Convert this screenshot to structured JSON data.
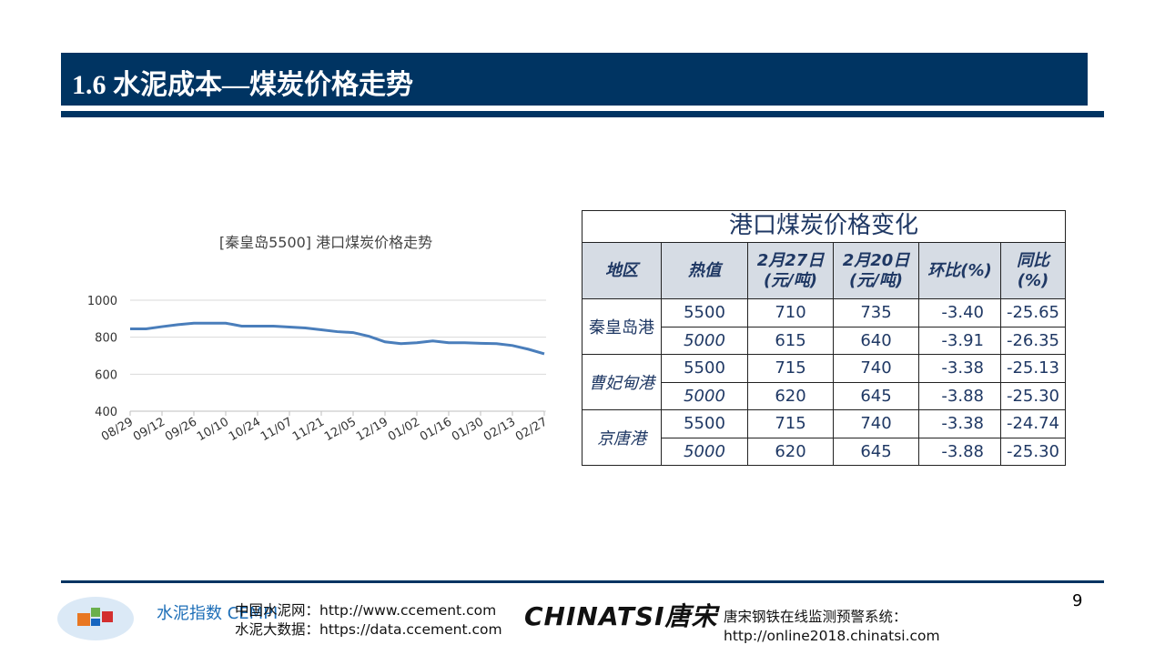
{
  "header": {
    "title": "1.6 水泥成本—煤炭价格走势"
  },
  "chart_data": {
    "type": "line",
    "title": "[秦皇岛5500] 港口煤炭价格走势",
    "xlabel": "",
    "ylabel": "",
    "ylim": [
      400,
      1000
    ],
    "yticks": [
      400,
      600,
      800,
      1000
    ],
    "xtick_labels": [
      "08/29",
      "09/12",
      "09/26",
      "10/10",
      "10/24",
      "11/07",
      "11/21",
      "12/05",
      "12/19",
      "01/02",
      "01/16",
      "01/30",
      "02/13",
      "02/27"
    ],
    "grid": true,
    "color": "#4a7ebb",
    "x": [
      "08/29",
      "09/05",
      "09/12",
      "09/19",
      "09/26",
      "10/03",
      "10/10",
      "10/17",
      "10/24",
      "10/31",
      "11/07",
      "11/14",
      "11/21",
      "11/28",
      "12/05",
      "12/12",
      "12/19",
      "12/26",
      "01/02",
      "01/09",
      "01/16",
      "01/23",
      "01/30",
      "02/06",
      "02/13",
      "02/20",
      "02/27"
    ],
    "values": [
      845,
      845,
      857,
      868,
      876,
      876,
      876,
      860,
      860,
      860,
      855,
      850,
      840,
      830,
      825,
      805,
      775,
      765,
      770,
      780,
      770,
      770,
      767,
      765,
      755,
      735,
      710
    ]
  },
  "table": {
    "title": "港口煤炭价格变化",
    "headers": [
      "地区",
      "热值",
      "2月27日\n(元/吨)",
      "2月20日\n(元/吨)",
      "环比(%)",
      "同比(%)"
    ],
    "h": {
      "c0": "地区",
      "c1": "热值",
      "c2a": "2月27日",
      "c2b": "(元/吨)",
      "c3a": "2月20日",
      "c3b": "(元/吨)",
      "c4": "环比(%)",
      "c5": "同比(%)"
    },
    "groups": [
      {
        "region": "秦皇岛港",
        "rows": [
          [
            "5500",
            "710",
            "735",
            "-3.40",
            "-25.65"
          ],
          [
            "5000",
            "615",
            "640",
            "-3.91",
            "-26.35"
          ]
        ]
      },
      {
        "region": "曹妃甸港",
        "rows": [
          [
            "5500",
            "715",
            "740",
            "-3.38",
            "-25.13"
          ],
          [
            "5000",
            "620",
            "645",
            "-3.88",
            "-25.30"
          ]
        ]
      },
      {
        "region": "京唐港",
        "rows": [
          [
            "5500",
            "715",
            "740",
            "-3.38",
            "-24.74"
          ],
          [
            "5000",
            "620",
            "645",
            "-3.88",
            "-25.30"
          ]
        ]
      }
    ]
  },
  "footer": {
    "ccement_label": "中国水泥网：http://www.ccement.com",
    "data_label": "水泥大数据：https://data.ccement.com",
    "cempi_logo": "水泥指数 CEMPI",
    "chinatsi_logo": "CHINATSI唐宋",
    "chinatsi_label": "唐宋钢铁在线监测预警系统：",
    "chinatsi_url": "http://online2018.chinatsi.com",
    "page": "9"
  }
}
